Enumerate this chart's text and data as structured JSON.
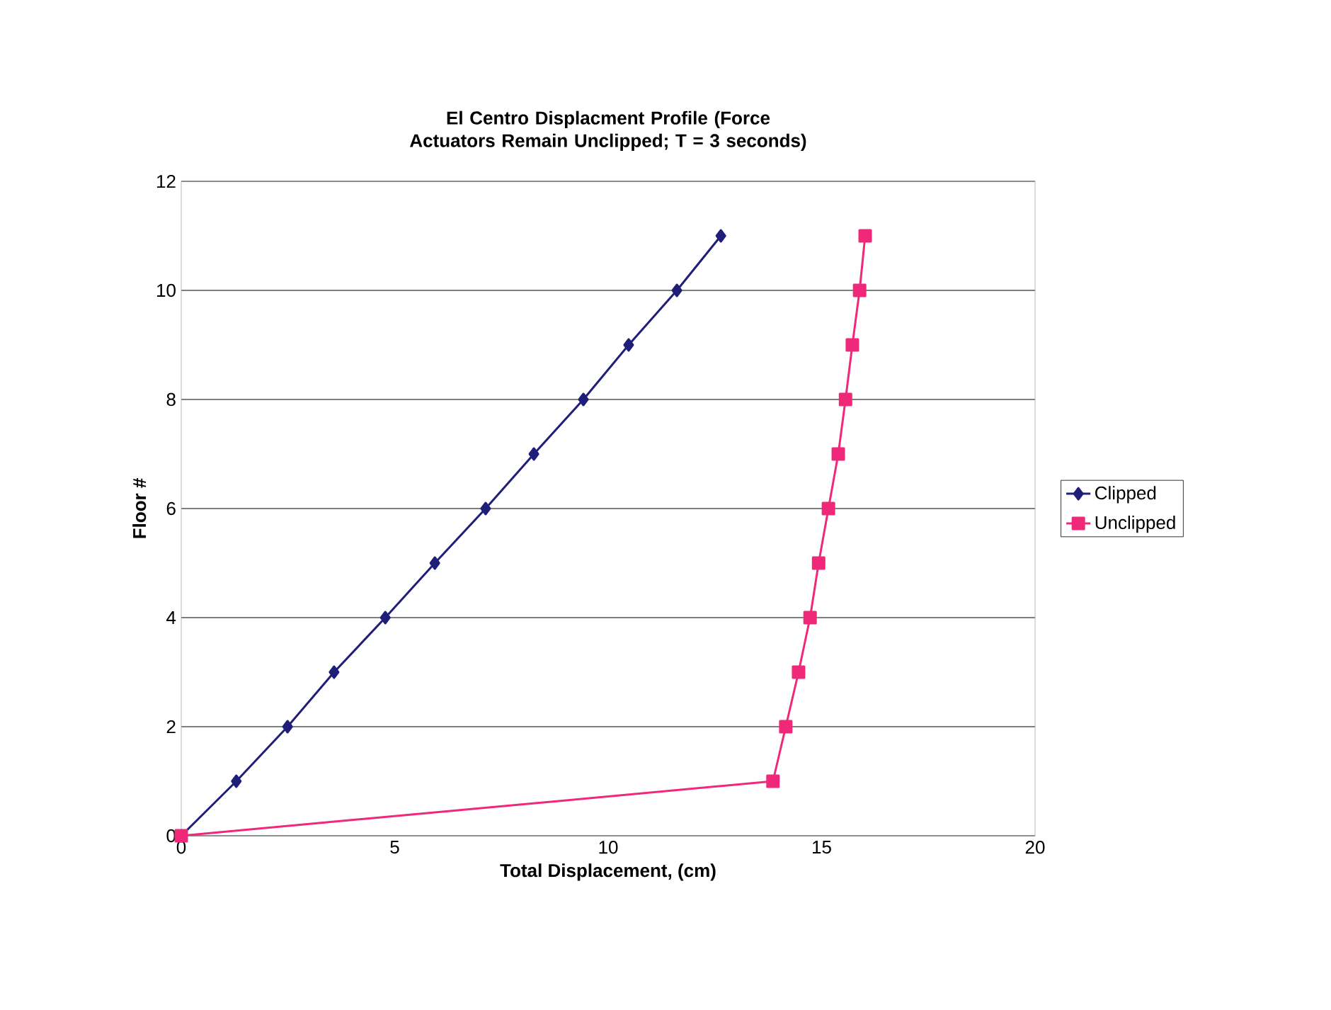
{
  "chart_data": {
    "type": "line",
    "title": "El Centro Displacment Profile (Force Actuators Remain Unclipped; T = 3 seconds)",
    "xlabel": "Total Displacement, (cm)",
    "ylabel": "Floor #",
    "xlim": [
      0,
      20
    ],
    "xticks": [
      0,
      5,
      10,
      15,
      20
    ],
    "ylim": [
      0,
      12
    ],
    "yticks": [
      0,
      2,
      4,
      6,
      8,
      10,
      12
    ],
    "grid": "y",
    "legend": "right",
    "series": [
      {
        "name": "Clipped",
        "color": "#1f1f7a",
        "marker": "diamond",
        "x": [
          0,
          1.29,
          2.49,
          3.58,
          4.78,
          5.94,
          7.13,
          8.26,
          9.42,
          10.48,
          11.61,
          12.64
        ],
        "values": [
          0,
          1,
          2,
          3,
          4,
          5,
          6,
          7,
          8,
          9,
          10,
          11
        ]
      },
      {
        "name": "Unclipped",
        "color": "#f0287a",
        "marker": "square",
        "x": [
          0,
          13.86,
          14.16,
          14.46,
          14.73,
          14.93,
          15.16,
          15.39,
          15.56,
          15.72,
          15.89,
          16.02
        ],
        "values": [
          0,
          1,
          2,
          3,
          4,
          5,
          6,
          7,
          8,
          9,
          10,
          11
        ]
      }
    ]
  }
}
